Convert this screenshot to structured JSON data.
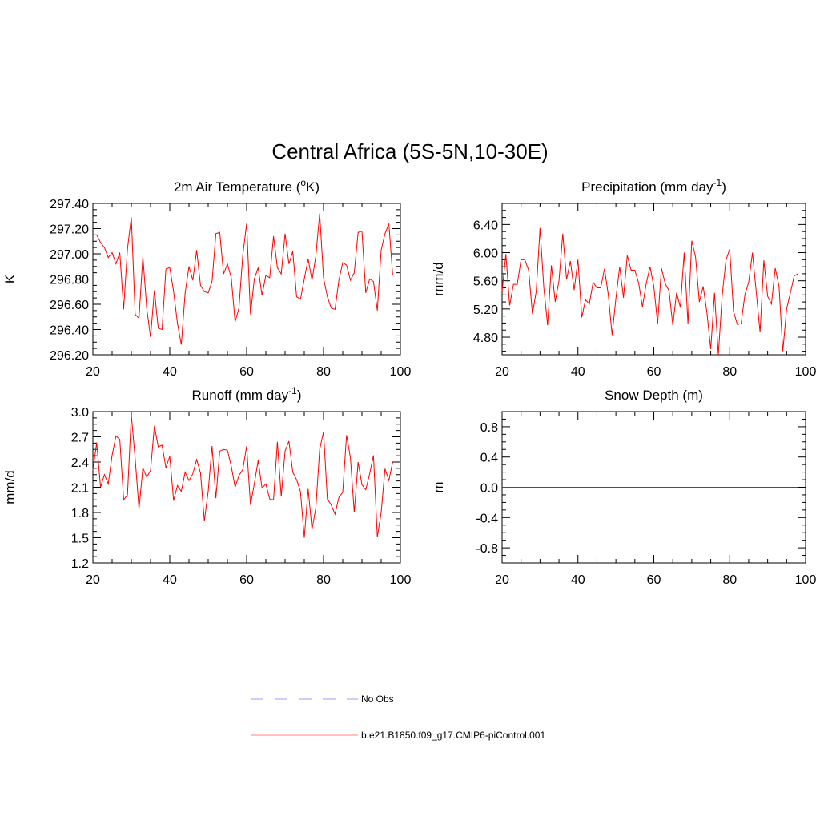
{
  "title": "Central Africa (5S-5N,10-30E)",
  "colors": {
    "model": "#ff0000",
    "obs": "#9a9aff",
    "axis": "#000000"
  },
  "legend": {
    "obs_label": "No Obs",
    "model_label": "b.e21.B1850.f09_g17.CMIP6-piControl.001"
  },
  "chart_data": [
    {
      "type": "line",
      "title_main": "2m Air Temperature (",
      "title_sup": "o",
      "title_tail": "K)",
      "ylabel": "K",
      "xlim": [
        20,
        100
      ],
      "ylim": [
        296.2,
        297.4
      ],
      "x_ticks": [
        20,
        40,
        60,
        80,
        100
      ],
      "y_ticks": [
        296.2,
        296.4,
        296.6,
        296.8,
        297.0,
        297.2,
        297.4
      ],
      "y_tick_labels": [
        "296.20",
        "296.40",
        "296.60",
        "296.80",
        "297.00",
        "297.20",
        "297.40"
      ],
      "x_start": 20,
      "values": [
        297.15,
        297.15,
        297.09,
        297.05,
        296.97,
        297.01,
        296.92,
        297.01,
        296.56,
        297.04,
        297.29,
        296.52,
        296.49,
        296.98,
        296.57,
        296.34,
        296.71,
        296.41,
        296.4,
        296.88,
        296.89,
        296.7,
        296.45,
        296.28,
        296.69,
        296.9,
        296.79,
        297.03,
        296.75,
        296.7,
        296.69,
        296.78,
        297.16,
        297.17,
        296.84,
        296.92,
        296.81,
        296.46,
        296.57,
        296.99,
        297.24,
        296.52,
        296.8,
        296.89,
        296.67,
        296.83,
        296.81,
        297.14,
        296.89,
        296.84,
        297.16,
        296.92,
        297.02,
        296.66,
        296.64,
        296.8,
        296.96,
        296.79,
        296.98,
        297.32,
        296.81,
        296.66,
        296.57,
        296.56,
        296.79,
        296.93,
        296.91,
        296.79,
        296.85,
        297.17,
        297.18,
        296.69,
        296.8,
        296.78,
        296.55,
        297.03,
        297.16,
        297.24,
        296.83
      ]
    },
    {
      "type": "line",
      "title_main": "Precipitation (mm day",
      "title_sup": "-1",
      "title_tail": ")",
      "ylabel": "mm/d",
      "xlim": [
        20,
        100
      ],
      "ylim": [
        4.55,
        6.7
      ],
      "x_ticks": [
        20,
        40,
        60,
        80,
        100
      ],
      "y_ticks": [
        4.8,
        5.2,
        5.6,
        6.0,
        6.4
      ],
      "y_tick_labels": [
        "4.80",
        "5.20",
        "5.60",
        "6.00",
        "6.40"
      ],
      "x_start": 20,
      "values": [
        5.45,
        5.98,
        5.25,
        5.55,
        5.55,
        5.9,
        5.9,
        5.75,
        5.13,
        5.45,
        6.35,
        5.5,
        4.97,
        5.82,
        5.3,
        5.6,
        6.27,
        5.62,
        5.88,
        5.47,
        5.9,
        5.08,
        5.33,
        5.27,
        5.58,
        5.5,
        5.5,
        5.77,
        5.4,
        4.83,
        5.35,
        5.8,
        5.36,
        5.96,
        5.75,
        5.75,
        5.57,
        5.23,
        5.56,
        5.8,
        5.52,
        4.99,
        5.78,
        5.56,
        5.46,
        4.97,
        5.43,
        5.22,
        6.0,
        4.99,
        6.17,
        5.94,
        5.3,
        5.52,
        5.15,
        4.63,
        5.43,
        4.55,
        5.38,
        5.89,
        6.05,
        5.17,
        4.98,
        4.99,
        5.4,
        5.58,
        6.0,
        5.44,
        4.87,
        5.89,
        5.38,
        5.27,
        5.78,
        5.52,
        4.6,
        5.2,
        5.43,
        5.67,
        5.7
      ]
    },
    {
      "type": "line",
      "title_main": "Runoff (mm day",
      "title_sup": "-1",
      "title_tail": ")",
      "ylabel": "mm/d",
      "xlim": [
        20,
        100
      ],
      "ylim": [
        1.2,
        3.0
      ],
      "x_ticks": [
        20,
        40,
        60,
        80,
        100
      ],
      "y_ticks": [
        1.2,
        1.5,
        1.8,
        2.1,
        2.4,
        2.7,
        3.0
      ],
      "y_tick_labels": [
        "1.2",
        "1.5",
        "1.8",
        "2.1",
        "2.4",
        "2.7",
        "3.0"
      ],
      "x_start": 20,
      "values": [
        2.3,
        2.63,
        2.1,
        2.25,
        2.14,
        2.48,
        2.71,
        2.67,
        1.95,
        2.01,
        2.96,
        2.44,
        1.84,
        2.33,
        2.22,
        2.3,
        2.83,
        2.58,
        2.6,
        2.33,
        2.47,
        1.94,
        2.12,
        2.05,
        2.28,
        2.18,
        2.26,
        2.43,
        2.27,
        1.7,
        2.05,
        2.59,
        1.97,
        2.53,
        2.55,
        2.54,
        2.35,
        2.1,
        2.24,
        2.31,
        2.59,
        1.89,
        2.14,
        2.42,
        2.09,
        2.14,
        1.96,
        1.95,
        2.64,
        1.99,
        2.53,
        2.65,
        2.28,
        2.19,
        2.05,
        1.5,
        2.08,
        1.6,
        1.85,
        2.55,
        2.76,
        1.96,
        1.89,
        1.78,
        1.98,
        2.04,
        2.72,
        2.45,
        1.8,
        2.4,
        2.13,
        2.07,
        2.26,
        2.48,
        1.51,
        1.8,
        2.32,
        2.18,
        2.4
      ]
    },
    {
      "type": "line",
      "title_main": "Snow Depth (m)",
      "title_sup": "",
      "title_tail": "",
      "ylabel": "m",
      "xlim": [
        20,
        100
      ],
      "ylim": [
        -1.0,
        1.0
      ],
      "x_ticks": [
        20,
        40,
        60,
        80,
        100
      ],
      "y_ticks": [
        -0.8,
        -0.4,
        0.0,
        0.4,
        0.8
      ],
      "y_tick_labels": [
        "-0.8",
        "-0.4",
        "0.0",
        "0.4",
        "0.8"
      ],
      "x_start": 20,
      "values": [
        0,
        0,
        0,
        0,
        0,
        0,
        0,
        0,
        0,
        0,
        0,
        0,
        0,
        0,
        0,
        0,
        0,
        0,
        0,
        0,
        0,
        0,
        0,
        0,
        0,
        0,
        0,
        0,
        0,
        0,
        0,
        0,
        0,
        0,
        0,
        0,
        0,
        0,
        0,
        0,
        0,
        0,
        0,
        0,
        0,
        0,
        0,
        0,
        0,
        0,
        0,
        0,
        0,
        0,
        0,
        0,
        0,
        0,
        0,
        0,
        0,
        0,
        0,
        0,
        0,
        0,
        0,
        0,
        0,
        0,
        0,
        0,
        0,
        0,
        0,
        0,
        0,
        0,
        0
      ]
    }
  ]
}
